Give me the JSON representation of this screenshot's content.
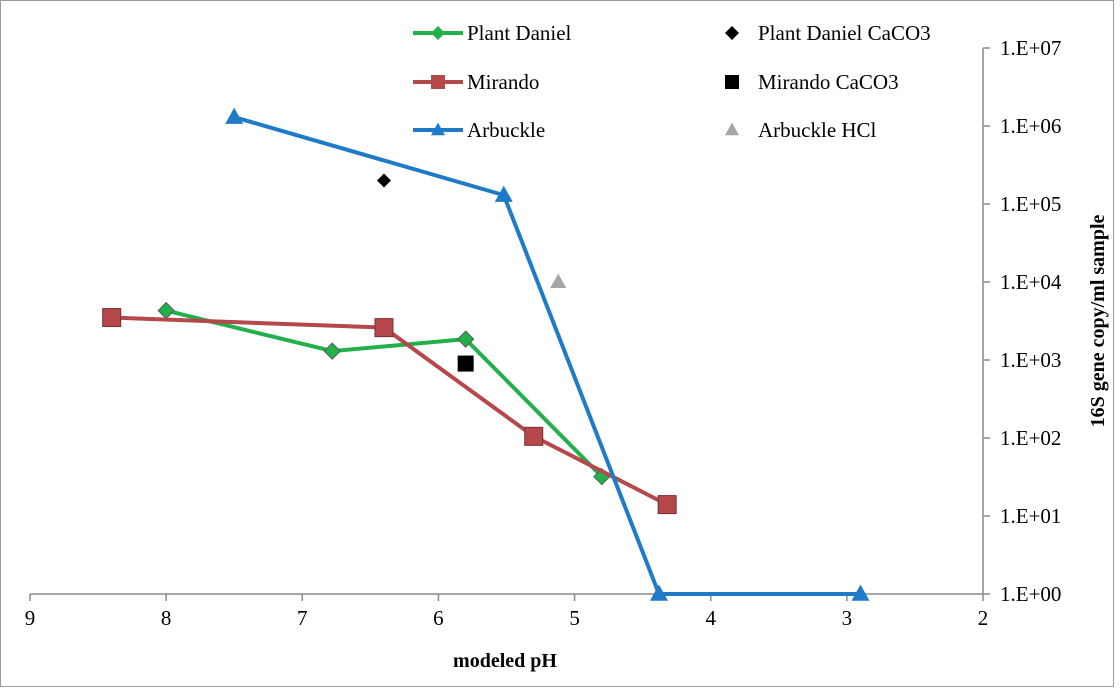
{
  "chart_data": {
    "type": "scatter",
    "xlabel": "modeled pH",
    "ylabel": "16S gene copy/ml sample",
    "x_reversed": true,
    "xlim": [
      2,
      9
    ],
    "ylim": [
      1,
      10000000
    ],
    "y_scale": "log",
    "x_ticks": [
      "9",
      "8",
      "7",
      "6",
      "5",
      "4",
      "3",
      "2"
    ],
    "x_tick_values": [
      9,
      8,
      7,
      6,
      5,
      4,
      3,
      2
    ],
    "y_ticks": [
      "1.E+00",
      "1.E+01",
      "1.E+02",
      "1.E+03",
      "1.E+04",
      "1.E+05",
      "1.E+06",
      "1.E+07"
    ],
    "y_tick_values": [
      1,
      10,
      100,
      1000,
      10000,
      100000,
      1000000,
      10000000
    ],
    "grid": false,
    "legend_position": "top",
    "series": [
      {
        "name": "Plant Daniel",
        "style": "line",
        "marker": "diamond",
        "color": "#22b04b",
        "x": [
          8.0,
          6.78,
          5.8,
          4.8
        ],
        "y": [
          4300,
          1300,
          1850,
          32
        ]
      },
      {
        "name": "Mirando",
        "style": "line",
        "marker": "square",
        "color": "#b5484a",
        "x": [
          8.4,
          6.4,
          5.3,
          4.32
        ],
        "y": [
          3500,
          2600,
          105,
          14
        ]
      },
      {
        "name": "Arbuckle",
        "style": "line",
        "marker": "triangle",
        "color": "#1f7bc8",
        "x": [
          7.5,
          5.52,
          4.38,
          2.9
        ],
        "y": [
          1300000,
          130000,
          1,
          1
        ]
      },
      {
        "name": "Plant Daniel CaCO3",
        "style": "marker",
        "marker": "diamond",
        "color": "#000000",
        "x": [
          6.4
        ],
        "y": [
          200000
        ]
      },
      {
        "name": "Mirando CaCO3",
        "style": "marker",
        "marker": "square",
        "color": "#000000",
        "x": [
          5.8
        ],
        "y": [
          900
        ]
      },
      {
        "name": "Arbuckle HCl",
        "style": "marker",
        "marker": "triangle",
        "color": "#a6a6a6",
        "x": [
          5.12
        ],
        "y": [
          10000
        ]
      }
    ]
  }
}
